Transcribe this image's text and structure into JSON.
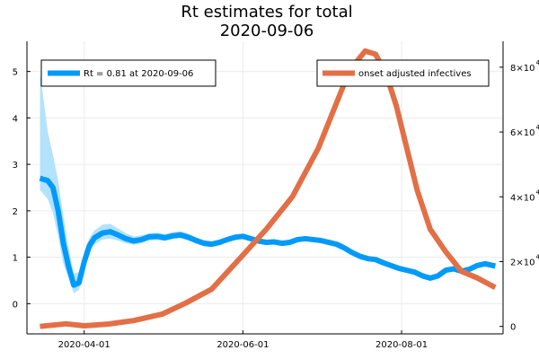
{
  "chart_data": {
    "type": "line",
    "title_line1": "Rt estimates for total",
    "title_line2": "2020-09-06",
    "grid": true,
    "x_axis": {
      "type": "date",
      "range": [
        "2020-03-10",
        "2020-09-09"
      ],
      "ticks": [
        "2020-04-01",
        "2020-06-01",
        "2020-08-01"
      ]
    },
    "y_left": {
      "range": [
        -0.65,
        5.65
      ],
      "ticks": [
        0,
        1,
        2,
        3,
        4,
        5
      ]
    },
    "y_right": {
      "range": [
        -2300,
        88000
      ],
      "ticks": [
        {
          "value": 0,
          "base": "0",
          "exp": ""
        },
        {
          "value": 20000,
          "base": "2×10",
          "exp": "4"
        },
        {
          "value": 40000,
          "base": "4×10",
          "exp": "4"
        },
        {
          "value": 60000,
          "base": "6×10",
          "exp": "4"
        },
        {
          "value": 80000,
          "base": "8×10",
          "exp": "4"
        }
      ]
    },
    "legend_left": {
      "position": "top-left",
      "text": "Rt = 0.81 at 2020-09-06"
    },
    "legend_right": {
      "position": "top-right",
      "text": "onset adjusted infectives"
    },
    "colors": {
      "rt": "#009AFA",
      "band": "#B3E2FC",
      "infectives": "#E26F46",
      "grid": "#EBEBEB"
    },
    "series": [
      {
        "axis": "left",
        "x": [
          "2020-03-15",
          "2020-03-18",
          "2020-03-20",
          "2020-03-22",
          "2020-03-24",
          "2020-03-26",
          "2020-03-28",
          "2020-03-30",
          "2020-04-01",
          "2020-04-03",
          "2020-04-05",
          "2020-04-08",
          "2020-04-11",
          "2020-04-14",
          "2020-04-17",
          "2020-04-20",
          "2020-04-23",
          "2020-04-26",
          "2020-04-29",
          "2020-05-02",
          "2020-05-05",
          "2020-05-08",
          "2020-05-11",
          "2020-05-14",
          "2020-05-17",
          "2020-05-20",
          "2020-05-23",
          "2020-05-26",
          "2020-05-29",
          "2020-06-01",
          "2020-06-04",
          "2020-06-07",
          "2020-06-10",
          "2020-06-13",
          "2020-06-16",
          "2020-06-19",
          "2020-06-22",
          "2020-06-25",
          "2020-06-28",
          "2020-07-01",
          "2020-07-04",
          "2020-07-07",
          "2020-07-10",
          "2020-07-13",
          "2020-07-16",
          "2020-07-19",
          "2020-07-22",
          "2020-07-25",
          "2020-07-28",
          "2020-07-31",
          "2020-08-03",
          "2020-08-06",
          "2020-08-09",
          "2020-08-12",
          "2020-08-15",
          "2020-08-18",
          "2020-08-21",
          "2020-08-24",
          "2020-08-27",
          "2020-08-30",
          "2020-09-02",
          "2020-09-06"
        ],
        "y": [
          2.7,
          2.65,
          2.5,
          2.0,
          1.3,
          0.8,
          0.4,
          0.45,
          0.9,
          1.25,
          1.42,
          1.52,
          1.55,
          1.48,
          1.4,
          1.35,
          1.38,
          1.44,
          1.45,
          1.42,
          1.46,
          1.48,
          1.43,
          1.36,
          1.3,
          1.28,
          1.32,
          1.38,
          1.43,
          1.45,
          1.4,
          1.35,
          1.32,
          1.33,
          1.3,
          1.32,
          1.38,
          1.4,
          1.38,
          1.36,
          1.32,
          1.28,
          1.2,
          1.1,
          1.02,
          0.97,
          0.95,
          0.88,
          0.82,
          0.76,
          0.72,
          0.68,
          0.6,
          0.55,
          0.6,
          0.72,
          0.75,
          0.7,
          0.74,
          0.82,
          0.86,
          0.81
        ],
        "lower": [
          2.45,
          2.25,
          1.95,
          1.45,
          0.85,
          0.55,
          0.22,
          0.3,
          0.75,
          1.1,
          1.28,
          1.38,
          1.4,
          1.36,
          1.3,
          1.27,
          1.3,
          1.36,
          1.37,
          1.35,
          1.39,
          1.41,
          1.36,
          1.3,
          1.24,
          1.22,
          1.27,
          1.33,
          1.38,
          1.4,
          1.35,
          1.3,
          1.27,
          1.28,
          1.25,
          1.27,
          1.33,
          1.35,
          1.33,
          1.31,
          1.27,
          1.23,
          1.15,
          1.05,
          0.97,
          0.92,
          0.9,
          0.83,
          0.77,
          0.71,
          0.67,
          0.63,
          0.55,
          0.5,
          0.55,
          0.67,
          0.7,
          0.65,
          0.69,
          0.77,
          0.8,
          0.76
        ],
        "upper": [
          5.0,
          3.7,
          3.2,
          2.65,
          1.9,
          1.2,
          0.65,
          0.68,
          1.08,
          1.42,
          1.58,
          1.7,
          1.72,
          1.62,
          1.52,
          1.45,
          1.47,
          1.52,
          1.53,
          1.5,
          1.54,
          1.56,
          1.51,
          1.43,
          1.37,
          1.35,
          1.38,
          1.44,
          1.49,
          1.51,
          1.46,
          1.41,
          1.38,
          1.39,
          1.36,
          1.38,
          1.43,
          1.45,
          1.43,
          1.41,
          1.37,
          1.33,
          1.25,
          1.15,
          1.07,
          1.02,
          1.0,
          0.93,
          0.87,
          0.81,
          0.77,
          0.73,
          0.65,
          0.6,
          0.65,
          0.77,
          0.8,
          0.75,
          0.79,
          0.87,
          0.91,
          0.86
        ]
      },
      {
        "axis": "right",
        "x": [
          "2020-03-15",
          "2020-03-25",
          "2020-04-01",
          "2020-04-10",
          "2020-04-20",
          "2020-05-01",
          "2020-05-10",
          "2020-05-20",
          "2020-06-01",
          "2020-06-10",
          "2020-06-20",
          "2020-06-30",
          "2020-07-05",
          "2020-07-10",
          "2020-07-15",
          "2020-07-18",
          "2020-07-22",
          "2020-07-26",
          "2020-07-30",
          "2020-08-03",
          "2020-08-07",
          "2020-08-12",
          "2020-08-18",
          "2020-08-24",
          "2020-08-30",
          "2020-09-06"
        ],
        "y": [
          0,
          800,
          200,
          700,
          1800,
          3800,
          7200,
          11500,
          22000,
          30000,
          40000,
          55000,
          65000,
          75000,
          82000,
          85000,
          84000,
          78000,
          68000,
          55000,
          42000,
          30000,
          23000,
          17000,
          15000,
          12000
        ]
      }
    ]
  }
}
